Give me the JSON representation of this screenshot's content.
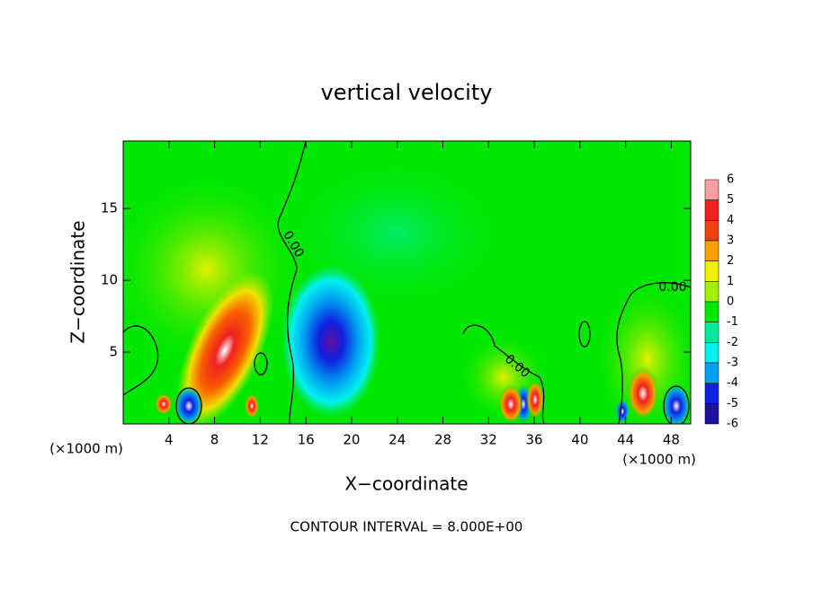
{
  "chart_data": {
    "type": "contour",
    "title": "vertical velocity",
    "x_label": "X−coordinate",
    "y_label": "Z−coordinate",
    "x_unit": "(×1000 m)",
    "y_unit": "(×1000 m)",
    "xlim": [
      0,
      49.7
    ],
    "ylim": [
      0,
      19.7
    ],
    "xticks": [
      4,
      8,
      12,
      16,
      20,
      24,
      28,
      32,
      36,
      40,
      44,
      48
    ],
    "yticks": [
      5,
      10,
      15
    ],
    "colorbar": {
      "ticks": [
        6,
        5,
        4,
        3,
        2,
        1,
        0,
        -1,
        -2,
        -3,
        -4,
        -5,
        -6
      ],
      "colors": [
        "#f4a0a0",
        "#f02020",
        "#f04010",
        "#f8a000",
        "#f0f000",
        "#a0f000",
        "#00e800",
        "#00e8a0",
        "#00f0f0",
        "#00a0f0",
        "#1020e0",
        "#2010a0"
      ]
    },
    "contour_labels": [
      {
        "value": 0,
        "label": "0.00"
      },
      {
        "value": 0,
        "label": "0.00"
      },
      {
        "value": 0,
        "label": "0.00"
      }
    ],
    "footer": "CONTOUR INTERVAL = 8.000E+00"
  }
}
